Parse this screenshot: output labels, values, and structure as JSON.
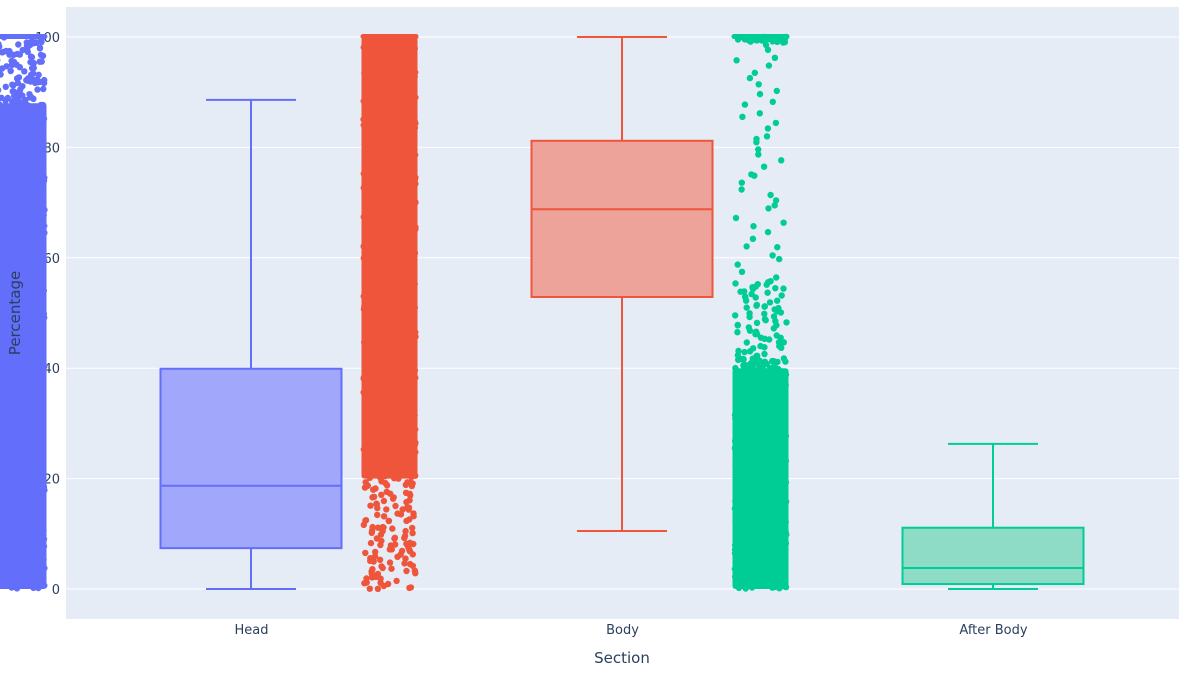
{
  "chart_data": {
    "type": "box",
    "title": "",
    "xlabel": "Section",
    "ylabel": "Percentage",
    "ylim": [
      -5.5,
      105.5
    ],
    "yticks": [
      0,
      20,
      40,
      60,
      80,
      100
    ],
    "grid": true,
    "legend": "none",
    "categories": [
      "Head",
      "Body",
      "After Body"
    ],
    "points": "all (jittered strip to the left of each box)",
    "series": [
      {
        "name": "Head",
        "color": "#636efa",
        "fill": "#a1a8fc",
        "stats": {
          "lower_fence": 0,
          "q1": 7.4,
          "median": 18.7,
          "q3": 39.9,
          "upper_fence": 88.6
        },
        "points_range": [
          0,
          100
        ],
        "density_note": "dense over full 0-100 range, slightly sparser above 88"
      },
      {
        "name": "Body",
        "color": "#ef553b",
        "fill": "#eda29a",
        "stats": {
          "lower_fence": 10.5,
          "q1": 52.9,
          "median": 68.8,
          "q3": 81.2,
          "upper_fence": 100
        },
        "points_range": [
          0,
          100
        ],
        "density_note": "dense over full range, sparser below 20"
      },
      {
        "name": "After Body",
        "color": "#00cc96",
        "fill": "#8fdcc6",
        "stats": {
          "lower_fence": 0,
          "q1": 0.9,
          "median": 3.8,
          "q3": 11.1,
          "upper_fence": 26.3
        },
        "points_range": [
          0,
          100
        ],
        "density_note": "dense 0-42, moderate 42-56, sparse 56-98, dense cluster at 100"
      }
    ]
  },
  "axes": {
    "x_title": "Section",
    "y_title": "Percentage",
    "y_tick_labels": [
      "0",
      "20",
      "40",
      "60",
      "80",
      "100"
    ],
    "x_tick_labels": [
      "Head",
      "Body",
      "After Body"
    ]
  },
  "colors": {
    "plot_bg": "#e5ecf6",
    "paper_bg": "#ffffff",
    "grid": "#ffffff",
    "text": "#2a3f5f"
  }
}
